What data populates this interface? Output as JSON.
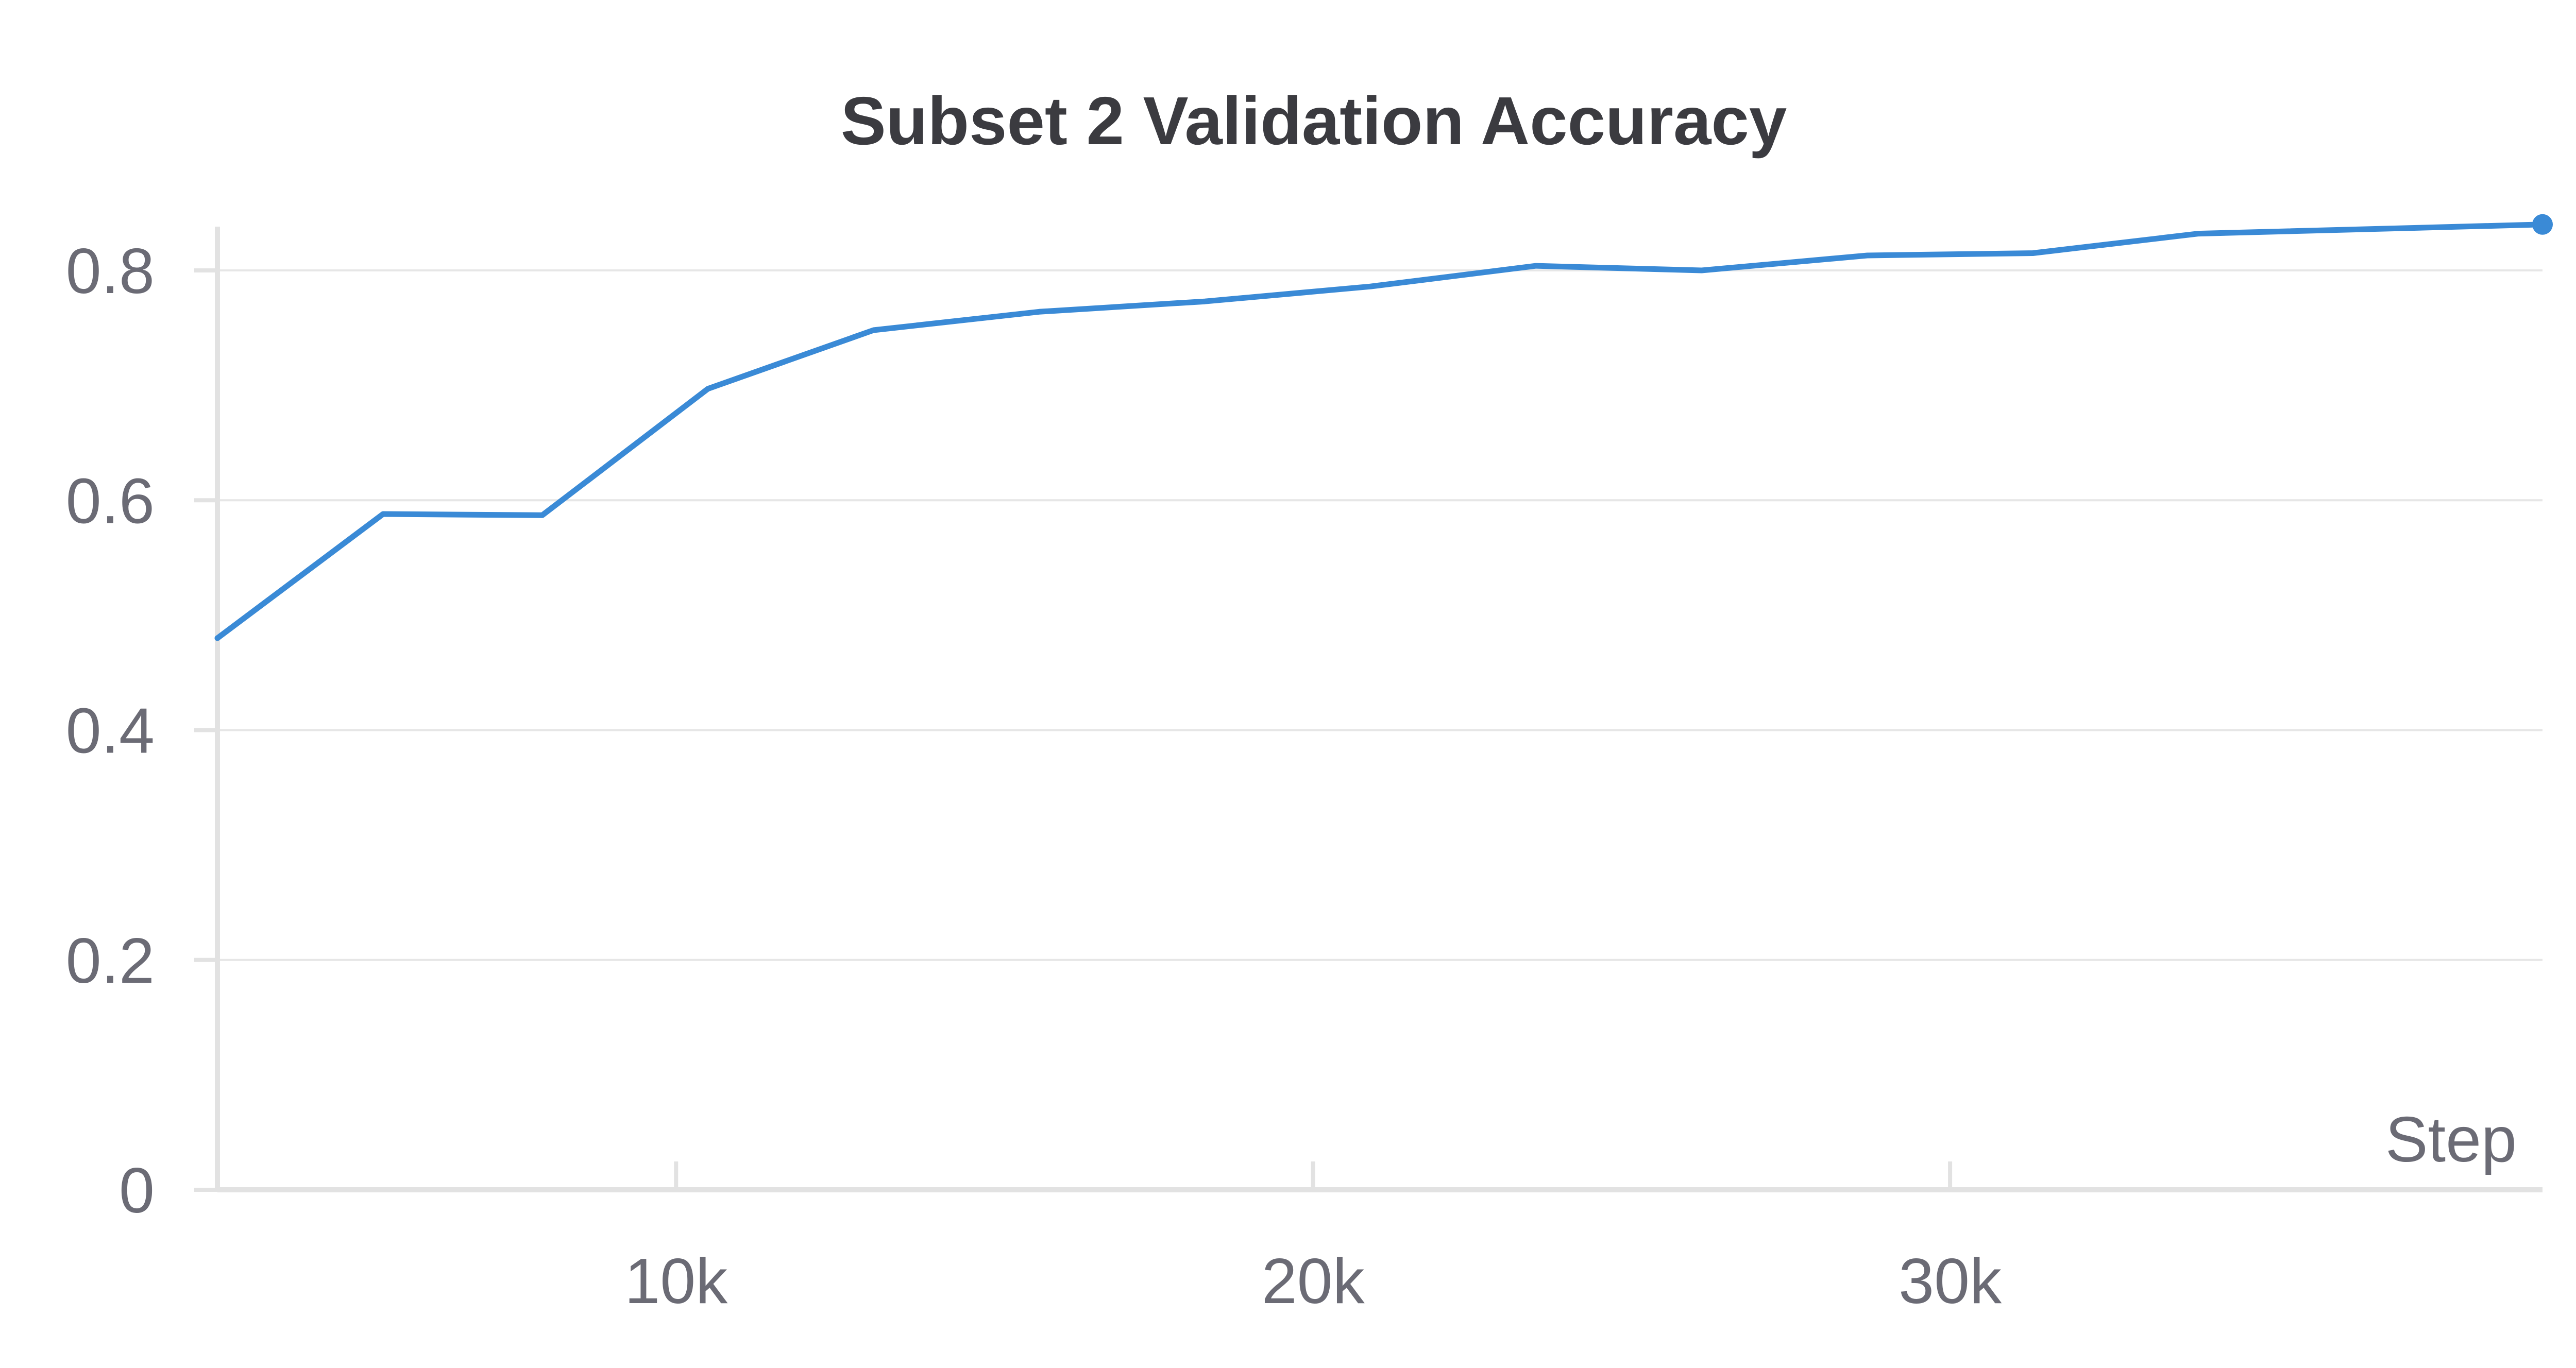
{
  "chart_data": {
    "type": "line",
    "title": "Subset 2 Validation Accuracy",
    "xlabel": "Step",
    "ylabel": "",
    "xlim": [
      2800,
      39300
    ],
    "ylim": [
      0,
      0.84
    ],
    "x_ticks": [
      {
        "value": 10000,
        "label": "10k"
      },
      {
        "value": 20000,
        "label": "20k"
      },
      {
        "value": 30000,
        "label": "30k"
      }
    ],
    "y_ticks": [
      {
        "value": 0,
        "label": "0"
      },
      {
        "value": 0.2,
        "label": "0.2"
      },
      {
        "value": 0.4,
        "label": "0.4"
      },
      {
        "value": 0.6,
        "label": "0.6"
      },
      {
        "value": 0.8,
        "label": "0.8"
      }
    ],
    "grid": true,
    "legend": "none",
    "series": [
      {
        "color": "#3a8ad6",
        "x": [
          2800,
          5400,
          7900,
          10500,
          13100,
          15700,
          18300,
          20900,
          23500,
          26100,
          28700,
          31300,
          33900,
          39300
        ],
        "y": [
          0.48,
          0.588,
          0.587,
          0.697,
          0.748,
          0.764,
          0.773,
          0.786,
          0.804,
          0.8,
          0.813,
          0.815,
          0.832,
          0.84
        ]
      }
    ]
  }
}
